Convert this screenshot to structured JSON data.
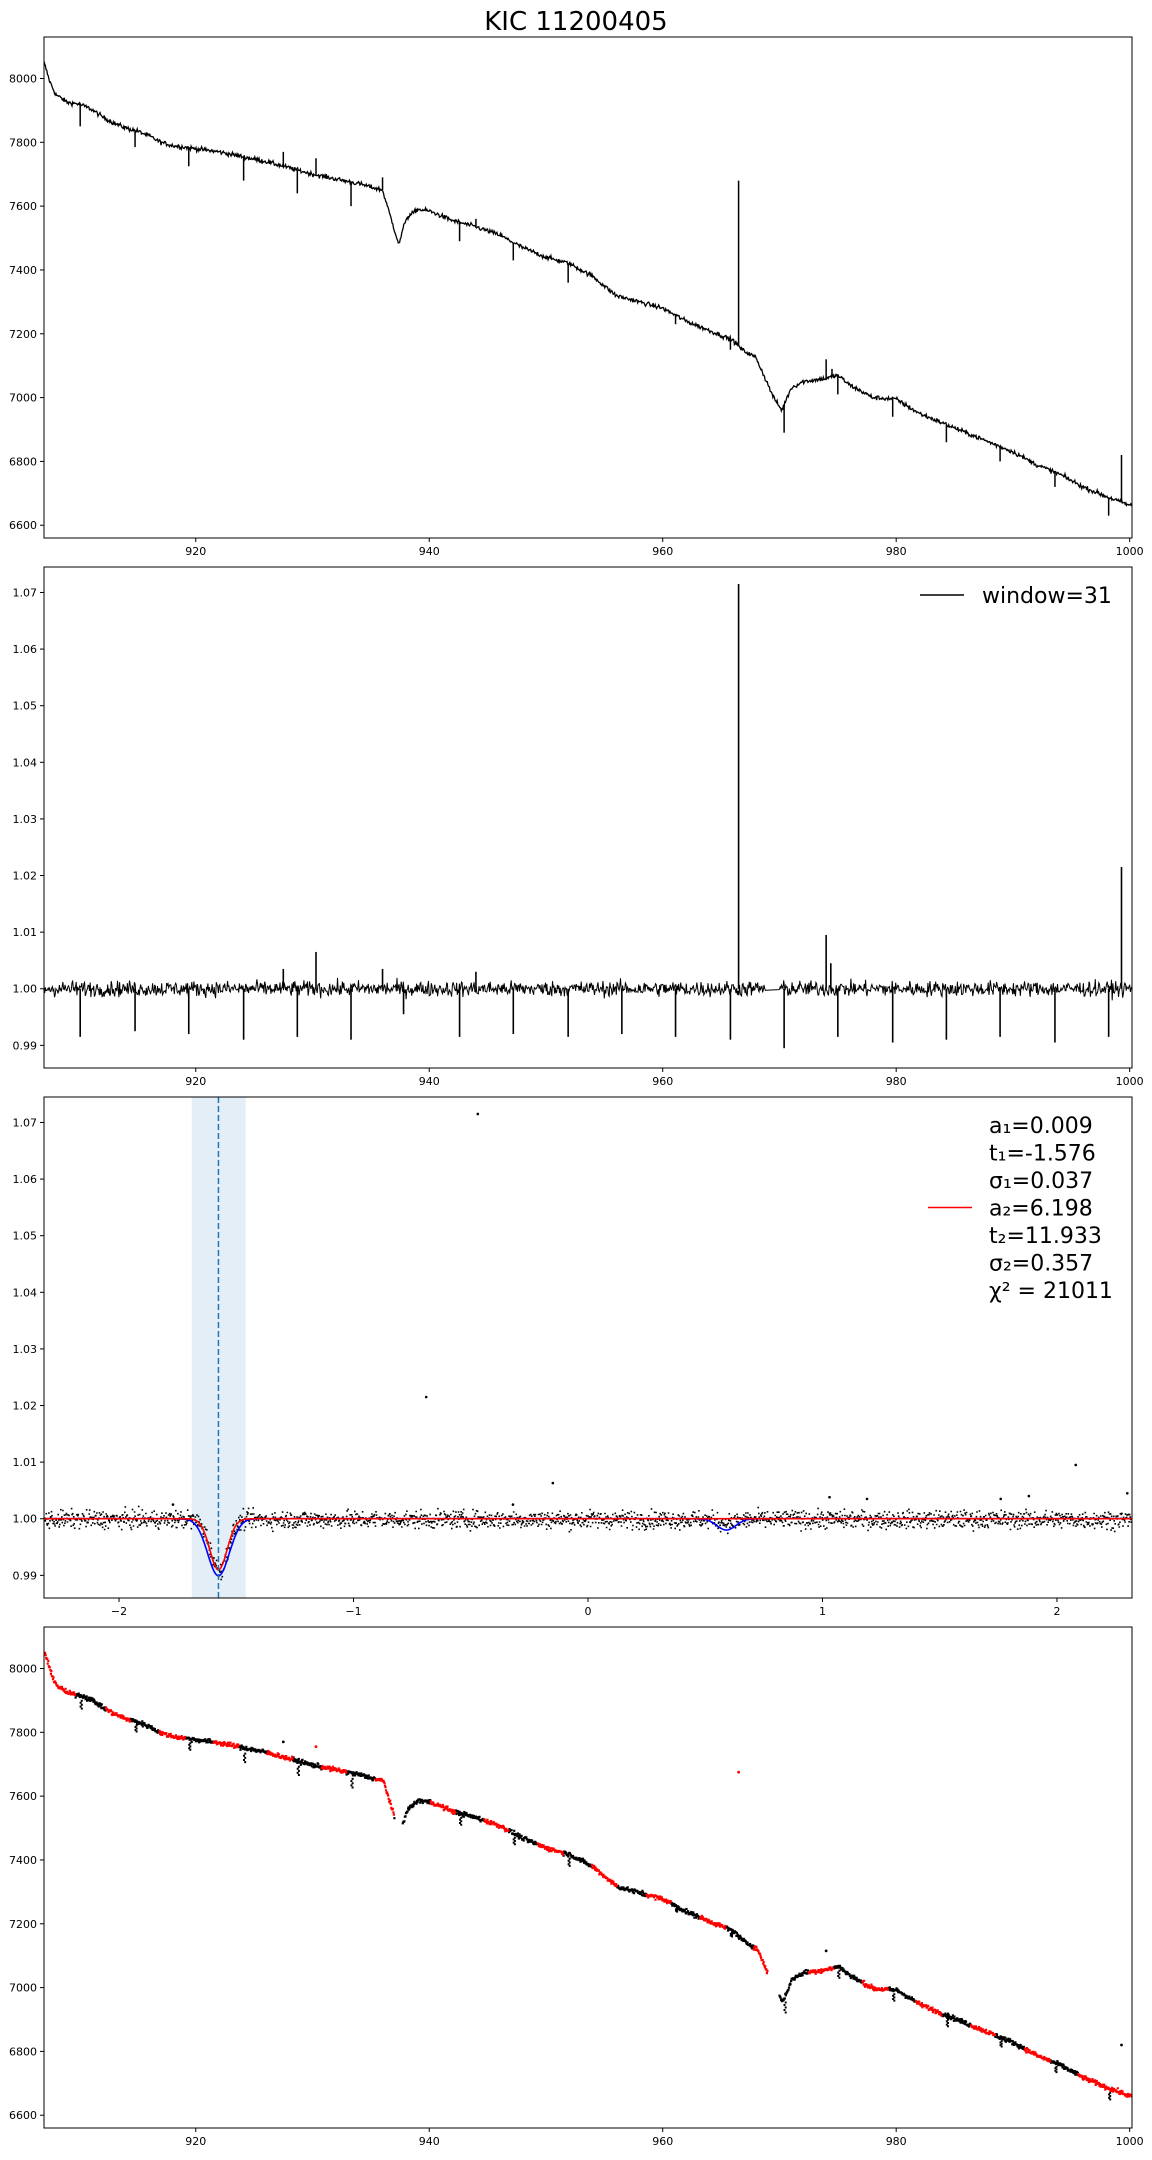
{
  "figure": {
    "title": "KIC 11200405"
  },
  "chart_data": [
    {
      "type": "line",
      "panel": 1,
      "xlim": [
        907,
        1000.2
      ],
      "ylim": [
        6560,
        8130
      ],
      "xticks": [
        920,
        940,
        960,
        980,
        1000
      ],
      "yticks": [
        6600,
        6800,
        7000,
        7200,
        7400,
        7600,
        7800,
        8000
      ],
      "grid": false,
      "color": "#000000",
      "segments": [
        {
          "x": [
            907,
            907.5,
            908,
            909,
            910,
            911,
            912,
            913,
            914,
            915,
            916,
            917,
            918,
            920,
            922,
            924,
            926,
            928,
            930,
            932,
            934,
            936,
            937.4
          ],
          "y": [
            8050,
            7990,
            7950,
            7925,
            7920,
            7905,
            7880,
            7860,
            7845,
            7835,
            7820,
            7800,
            7790,
            7780,
            7770,
            7755,
            7740,
            7720,
            7700,
            7685,
            7670,
            7650,
            7480
          ]
        },
        {
          "x": [
            937.4,
            938,
            939,
            940,
            941,
            942,
            944,
            946,
            948,
            950,
            952,
            954,
            956,
            958,
            960,
            962,
            964,
            966,
            966.8
          ],
          "y": [
            7480,
            7560,
            7590,
            7585,
            7570,
            7555,
            7535,
            7510,
            7470,
            7440,
            7420,
            7380,
            7320,
            7300,
            7280,
            7240,
            7210,
            7180,
            7150
          ]
        },
        {
          "x": [
            966.8,
            968,
            969.5,
            970.2,
            971,
            972,
            973,
            974,
            975,
            976,
            978,
            980,
            982,
            984,
            986,
            988,
            990,
            992,
            994,
            996,
            998,
            1000.2
          ],
          "y": [
            7150,
            7125,
            7000,
            6960,
            7030,
            7050,
            7055,
            7060,
            7070,
            7040,
            7000,
            6995,
            6950,
            6920,
            6890,
            6860,
            6830,
            6790,
            6760,
            6720,
            6690,
            6660
          ]
        }
      ],
      "spikes_down": [
        {
          "x": 910.1,
          "y": 7850
        },
        {
          "x": 914.8,
          "y": 7785
        },
        {
          "x": 919.4,
          "y": 7725
        },
        {
          "x": 924.1,
          "y": 7680
        },
        {
          "x": 928.7,
          "y": 7640
        },
        {
          "x": 933.3,
          "y": 7600
        },
        {
          "x": 942.6,
          "y": 7490
        },
        {
          "x": 947.2,
          "y": 7430
        },
        {
          "x": 951.9,
          "y": 7360
        },
        {
          "x": 956.5,
          "y": 7310
        },
        {
          "x": 961.1,
          "y": 7230
        },
        {
          "x": 965.8,
          "y": 7150
        },
        {
          "x": 970.4,
          "y": 6890
        },
        {
          "x": 975.0,
          "y": 7010
        },
        {
          "x": 979.7,
          "y": 6940
        },
        {
          "x": 984.3,
          "y": 6860
        },
        {
          "x": 988.9,
          "y": 6800
        },
        {
          "x": 993.6,
          "y": 6720
        },
        {
          "x": 998.2,
          "y": 6630
        }
      ],
      "spikes_up": [
        {
          "x": 927.5,
          "y": 7770
        },
        {
          "x": 930.3,
          "y": 7750
        },
        {
          "x": 936.0,
          "y": 7690
        },
        {
          "x": 944.0,
          "y": 7560
        },
        {
          "x": 966.5,
          "y": 7680
        },
        {
          "x": 974.0,
          "y": 7120
        },
        {
          "x": 974.5,
          "y": 7090
        },
        {
          "x": 999.3,
          "y": 6820
        }
      ]
    },
    {
      "type": "line",
      "panel": 2,
      "xlim": [
        907,
        1000.2
      ],
      "ylim": [
        0.986,
        1.0745
      ],
      "xticks": [
        920,
        940,
        960,
        980,
        1000
      ],
      "yticks": [
        0.99,
        1.0,
        1.01,
        1.02,
        1.03,
        1.04,
        1.05,
        1.06,
        1.07
      ],
      "legend": {
        "label": "window=31",
        "loc": "upper right"
      },
      "baseline": 1.0,
      "noise": 0.0016,
      "dips": [
        {
          "x": 910.1,
          "y": 0.9915
        },
        {
          "x": 914.8,
          "y": 0.9925
        },
        {
          "x": 919.4,
          "y": 0.992
        },
        {
          "x": 924.1,
          "y": 0.991
        },
        {
          "x": 928.7,
          "y": 0.9915
        },
        {
          "x": 933.3,
          "y": 0.991
        },
        {
          "x": 937.8,
          "y": 0.9955
        },
        {
          "x": 942.6,
          "y": 0.9915
        },
        {
          "x": 947.2,
          "y": 0.992
        },
        {
          "x": 951.9,
          "y": 0.9915
        },
        {
          "x": 956.5,
          "y": 0.992
        },
        {
          "x": 961.1,
          "y": 0.9915
        },
        {
          "x": 965.8,
          "y": 0.991
        },
        {
          "x": 970.4,
          "y": 0.9895
        },
        {
          "x": 975.0,
          "y": 0.9915
        },
        {
          "x": 979.7,
          "y": 0.9905
        },
        {
          "x": 984.3,
          "y": 0.991
        },
        {
          "x": 988.9,
          "y": 0.9915
        },
        {
          "x": 993.6,
          "y": 0.9905
        },
        {
          "x": 998.2,
          "y": 0.9915
        }
      ],
      "peaks": [
        {
          "x": 927.5,
          "y": 1.0035
        },
        {
          "x": 930.3,
          "y": 1.0065
        },
        {
          "x": 936.0,
          "y": 1.0035
        },
        {
          "x": 944.0,
          "y": 1.003
        },
        {
          "x": 966.5,
          "y": 1.0715
        },
        {
          "x": 974.0,
          "y": 1.0095
        },
        {
          "x": 974.4,
          "y": 1.0045
        },
        {
          "x": 999.3,
          "y": 1.0215
        }
      ]
    },
    {
      "type": "scatter",
      "panel": 3,
      "xlim": [
        -2.32,
        2.32
      ],
      "ylim": [
        0.986,
        1.0745
      ],
      "xticks": [
        -2,
        -1,
        0,
        1,
        2
      ],
      "yticks": [
        0.99,
        1.0,
        1.01,
        1.02,
        1.03,
        1.04,
        1.05,
        1.06,
        1.07
      ],
      "shaded_span": [
        -1.69,
        -1.46
      ],
      "vline": -1.576,
      "outliers": [
        {
          "x": -0.47,
          "y": 1.0715
        },
        {
          "x": -0.69,
          "y": 1.0215
        },
        {
          "x": 2.08,
          "y": 1.0095
        },
        {
          "x": -0.15,
          "y": 1.0063
        },
        {
          "x": 1.03,
          "y": 1.0038
        },
        {
          "x": 1.19,
          "y": 1.0035
        },
        {
          "x": 1.76,
          "y": 1.0035
        },
        {
          "x": 2.3,
          "y": 1.0045
        },
        {
          "x": -1.77,
          "y": 1.0025
        },
        {
          "x": -0.32,
          "y": 1.0025
        },
        {
          "x": 1.88,
          "y": 1.004
        }
      ],
      "fit_total": {
        "a1": 0.009,
        "t1": -1.576,
        "sigma1": 0.037,
        "color": "#ff0000"
      },
      "fit_secondary": {
        "center": 0.59,
        "depth": 0.002,
        "sigma": 0.04,
        "color": "#0000ff"
      },
      "legend": {
        "lines": [
          "a₁=0.009",
          "t₁=-1.576",
          "σ₁=0.037",
          "a₂=6.198",
          "t₂=11.933",
          "σ₂=0.357",
          "χ² = 21011"
        ],
        "loc": "upper right",
        "line_color": "#ff0000"
      }
    },
    {
      "type": "scatter",
      "panel": 4,
      "xlim": [
        907,
        1000.2
      ],
      "ylim": [
        6560,
        8130
      ],
      "xticks": [
        920,
        940,
        960,
        980,
        1000
      ],
      "yticks": [
        6600,
        6800,
        7000,
        7200,
        7400,
        7600,
        7800,
        8000
      ],
      "colors": {
        "in_window": "#ff0000",
        "out_window": "#000000"
      },
      "red_windows": [
        [
          907,
          909.6
        ],
        [
          912.2,
          914.3
        ],
        [
          916.8,
          919.0
        ],
        [
          921.4,
          923.6
        ],
        [
          926.0,
          928.2
        ],
        [
          930.7,
          932.8
        ],
        [
          935.3,
          936.9
        ],
        [
          940.0,
          942.1
        ],
        [
          944.6,
          946.7
        ],
        [
          949.2,
          951.4
        ],
        [
          953.8,
          956.0
        ],
        [
          958.5,
          960.6
        ],
        [
          963.1,
          965.3
        ],
        [
          967.7,
          968.9
        ],
        [
          972.4,
          974.5
        ],
        [
          977.0,
          979.2
        ],
        [
          981.6,
          983.8
        ],
        [
          986.3,
          988.4
        ],
        [
          990.9,
          993.1
        ],
        [
          995.5,
          1000.2
        ]
      ],
      "isolated_points": [
        {
          "x": 966.5,
          "y": 7675,
          "color": "#ff0000"
        },
        {
          "x": 999.3,
          "y": 6820,
          "color": "#000000"
        },
        {
          "x": 974.0,
          "y": 7115,
          "color": "#000000"
        },
        {
          "x": 930.3,
          "y": 7755,
          "color": "#ff0000"
        },
        {
          "x": 927.5,
          "y": 7770,
          "color": "#000000"
        }
      ]
    }
  ]
}
